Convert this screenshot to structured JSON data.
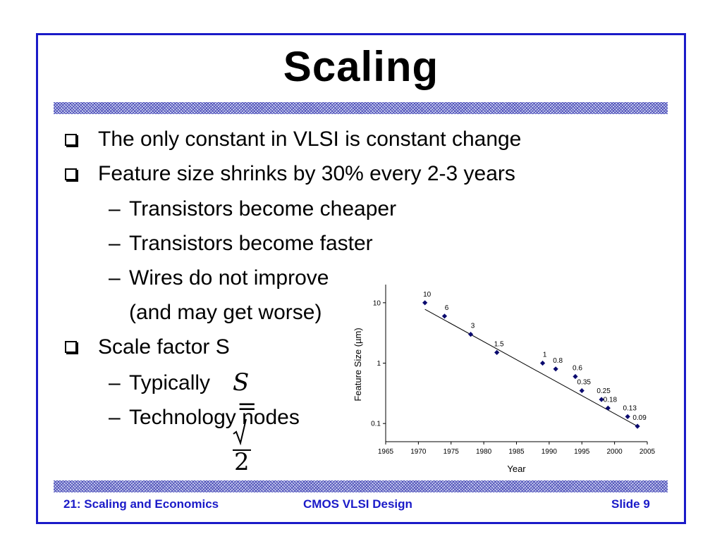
{
  "slide": {
    "title": "Scaling",
    "bullets": [
      {
        "text": "The only constant in VLSI is constant change"
      },
      {
        "text": "Feature size shrinks by 30% every 2-3 years"
      },
      {
        "text": "Transistors become cheaper"
      },
      {
        "text": "Transistors become faster"
      },
      {
        "text": "Wires do not improve"
      },
      {
        "text": "(and may get worse)"
      },
      {
        "text": "Scale factor S"
      },
      {
        "text": "Typically"
      },
      {
        "text": "Technology nodes"
      }
    ],
    "equation": {
      "lhs": "S",
      "op": "=",
      "radicand": "2"
    },
    "sub_marker": "–"
  },
  "footer": {
    "left": "21: Scaling and Economics",
    "center": "CMOS VLSI Design",
    "right": "Slide 9"
  },
  "colors": {
    "accent": "#1a1ac8",
    "point": "#0a0a6e"
  },
  "chart_data": {
    "type": "scatter",
    "xlabel": "Year",
    "ylabel": "Feature Size (µm)",
    "xlim": [
      1965,
      2005
    ],
    "ylim": [
      0.05,
      20
    ],
    "yscale": "log",
    "x_ticks": [
      1965,
      1970,
      1975,
      1980,
      1985,
      1990,
      1995,
      2000,
      2005
    ],
    "y_ticks": [
      10,
      1,
      0.1
    ],
    "y_tick_labels": [
      "10",
      "1",
      "0.1"
    ],
    "points": [
      {
        "x": 1971,
        "y": 10,
        "label": "10"
      },
      {
        "x": 1974,
        "y": 6,
        "label": "6"
      },
      {
        "x": 1978,
        "y": 3,
        "label": "3"
      },
      {
        "x": 1982,
        "y": 1.5,
        "label": "1.5"
      },
      {
        "x": 1989,
        "y": 1,
        "label": "1"
      },
      {
        "x": 1991,
        "y": 0.8,
        "label": "0.8"
      },
      {
        "x": 1994,
        "y": 0.6,
        "label": "0.6"
      },
      {
        "x": 1995,
        "y": 0.35,
        "label": "0.35"
      },
      {
        "x": 1998,
        "y": 0.25,
        "label": "0.25"
      },
      {
        "x": 1999,
        "y": 0.18,
        "label": "0.18"
      },
      {
        "x": 2002,
        "y": 0.13,
        "label": "0.13"
      },
      {
        "x": 2003.5,
        "y": 0.09,
        "label": "0.09"
      }
    ],
    "trendline": {
      "x": [
        1971,
        2003.5
      ],
      "y": [
        7.8,
        0.09
      ]
    },
    "legend": "none",
    "grid": false
  }
}
